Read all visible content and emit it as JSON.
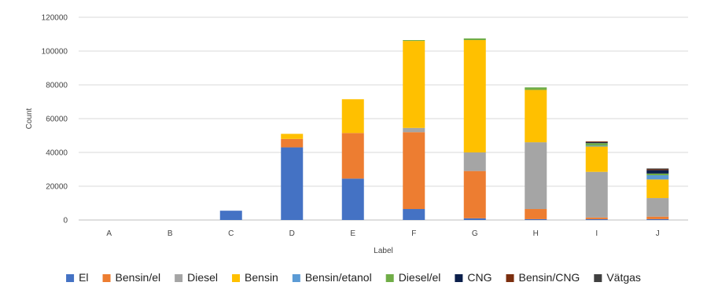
{
  "chart_data": {
    "type": "bar",
    "stacked": true,
    "xlabel": "Label",
    "ylabel": "Count",
    "ylim": [
      0,
      120000
    ],
    "yticks": [
      0,
      20000,
      40000,
      60000,
      80000,
      100000,
      120000
    ],
    "grid": "horizontal",
    "legend_position": "bottom",
    "categories": [
      "A",
      "B",
      "C",
      "D",
      "E",
      "F",
      "G",
      "H",
      "I",
      "J"
    ],
    "series": [
      {
        "name": "El",
        "color": "#4472C4",
        "values": [
          0,
          0,
          5500,
          43000,
          24500,
          6500,
          1000,
          500,
          500,
          500
        ]
      },
      {
        "name": "Bensin/el",
        "color": "#ED7D31",
        "values": [
          0,
          0,
          0,
          5000,
          27000,
          45500,
          28000,
          6000,
          1000,
          1500
        ]
      },
      {
        "name": "Diesel",
        "color": "#A5A5A5",
        "values": [
          0,
          0,
          0,
          0,
          0,
          2500,
          11000,
          39500,
          27000,
          11000
        ]
      },
      {
        "name": "Bensin",
        "color": "#FFC000",
        "values": [
          0,
          0,
          0,
          3000,
          20000,
          51500,
          66500,
          31000,
          15000,
          11000
        ]
      },
      {
        "name": "Bensin/etanol",
        "color": "#5B9BD5",
        "values": [
          0,
          0,
          0,
          0,
          0,
          0,
          0,
          0,
          500,
          2500
        ]
      },
      {
        "name": "Diesel/el",
        "color": "#70AD47",
        "values": [
          0,
          0,
          0,
          0,
          0,
          500,
          1000,
          1500,
          1500,
          1000
        ]
      },
      {
        "name": "CNG",
        "color": "#0B1F4B",
        "values": [
          0,
          0,
          0,
          0,
          0,
          0,
          0,
          0,
          500,
          2000
        ]
      },
      {
        "name": "Bensin/CNG",
        "color": "#7B2E0E",
        "values": [
          0,
          0,
          0,
          0,
          0,
          0,
          0,
          0,
          500,
          500
        ]
      },
      {
        "name": "Vätgas",
        "color": "#404040",
        "values": [
          0,
          0,
          0,
          0,
          0,
          0,
          0,
          0,
          0,
          500
        ]
      }
    ]
  }
}
